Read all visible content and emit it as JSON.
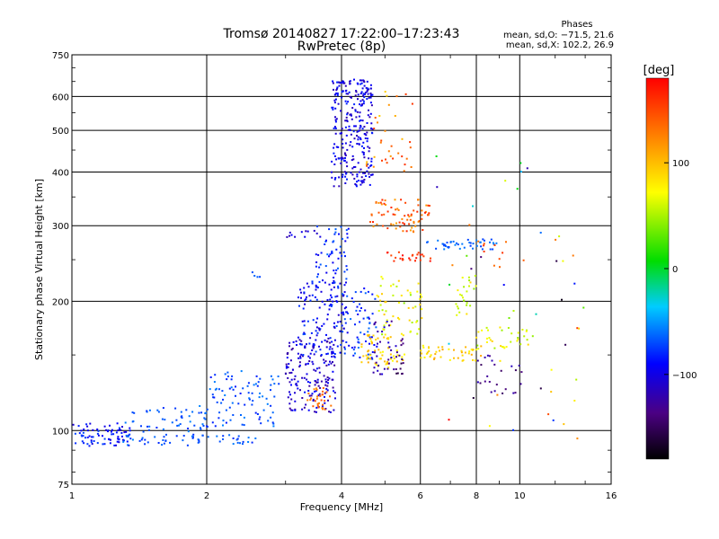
{
  "chart_data": {
    "type": "scatter",
    "title": "Tromsø 20140827 17:22:00–17:23:43",
    "subtitle": "RwPretec (8p)",
    "xlabel": "Frequency [MHz]",
    "ylabel": "Stationary phase Virtual Height [km]",
    "x_scale": "log",
    "y_scale": "log",
    "xlim": [
      1,
      16
    ],
    "ylim": [
      75,
      750
    ],
    "x_ticks": [
      1,
      2,
      4,
      6,
      8,
      10,
      16
    ],
    "x_tick_labels": [
      "1",
      "2",
      "4",
      "6",
      "8",
      "10",
      "16"
    ],
    "y_ticks": [
      75,
      100,
      200,
      300,
      400,
      500,
      600,
      750
    ],
    "y_tick_labels": [
      "75",
      "100",
      "200",
      "300",
      "400",
      "500",
      "600",
      "750"
    ],
    "grid": true,
    "stats": {
      "heading": "Phases",
      "line_o": "mean, sd,O: −71.5, 21.6",
      "line_x": "mean, sd,X: 102.2, 26.9"
    },
    "colorbar": {
      "label": "[deg]",
      "range": [
        -180,
        180
      ],
      "tick_values": [
        100,
        0,
        -100
      ],
      "tick_labels": [
        "100",
        "0",
        "−100"
      ]
    },
    "clusters": [
      {
        "f": [
          0.98,
          1.35
        ],
        "h": [
          92,
          104
        ],
        "c": [
          -110,
          -70
        ],
        "n": 80
      },
      {
        "f": [
          1.3,
          2.0
        ],
        "h": [
          92,
          115
        ],
        "c": [
          -80,
          -55
        ],
        "n": 70
      },
      {
        "f": [
          1.6,
          2.6
        ],
        "h": [
          93,
          98
        ],
        "c": [
          -80,
          -55
        ],
        "n": 35
      },
      {
        "f": [
          2.0,
          2.9
        ],
        "h": [
          102,
          138
        ],
        "c": [
          -85,
          -55
        ],
        "n": 90
      },
      {
        "f": [
          2.5,
          2.65
        ],
        "h": [
          225,
          240
        ],
        "c": [
          -75,
          -60
        ],
        "n": 4
      },
      {
        "f": [
          3.0,
          3.9
        ],
        "h": [
          110,
          165
        ],
        "c": [
          -130,
          -85
        ],
        "n": 170
      },
      {
        "f": [
          3.2,
          4.1
        ],
        "h": [
          150,
          225
        ],
        "c": [
          -110,
          -70
        ],
        "n": 130
      },
      {
        "f": [
          3.5,
          4.2
        ],
        "h": [
          220,
          300
        ],
        "c": [
          -100,
          -60
        ],
        "n": 55
      },
      {
        "f": [
          3.0,
          3.6
        ],
        "h": [
          280,
          292
        ],
        "c": [
          -120,
          -90
        ],
        "n": 12
      },
      {
        "f": [
          3.8,
          4.7
        ],
        "h": [
          370,
          660
        ],
        "c": [
          -120,
          -80
        ],
        "n": 280
      },
      {
        "f": [
          3.35,
          3.8
        ],
        "h": [
          112,
          126
        ],
        "c": [
          120,
          150
        ],
        "n": 30
      },
      {
        "f": [
          4.0,
          4.8
        ],
        "h": [
          145,
          215
        ],
        "c": [
          -100,
          -60
        ],
        "n": 70
      },
      {
        "f": [
          4.4,
          5.6
        ],
        "h": [
          140,
          168
        ],
        "c": [
          70,
          110
        ],
        "n": 60
      },
      {
        "f": [
          4.8,
          6.1
        ],
        "h": [
          165,
          230
        ],
        "c": [
          40,
          95
        ],
        "n": 55
      },
      {
        "f": [
          4.6,
          6.3
        ],
        "h": [
          290,
          345
        ],
        "c": [
          110,
          170
        ],
        "n": 75
      },
      {
        "f": [
          4.5,
          5.8
        ],
        "h": [
          400,
          620
        ],
        "c": [
          90,
          160
        ],
        "n": 35
      },
      {
        "f": [
          5.0,
          6.4
        ],
        "h": [
          246,
          262
        ],
        "c": [
          150,
          180
        ],
        "n": 25
      },
      {
        "f": [
          4.7,
          5.3
        ],
        "h": [
          135,
          180
        ],
        "c": [
          -140,
          -100
        ],
        "n": 30
      },
      {
        "f": [
          5.3,
          5.5
        ],
        "h": [
          135,
          165
        ],
        "c": [
          -160,
          -130
        ],
        "n": 15
      },
      {
        "f": [
          6.2,
          8.9
        ],
        "h": [
          264,
          280
        ],
        "c": [
          -75,
          -55
        ],
        "n": 45
      },
      {
        "f": [
          6.0,
          8.2
        ],
        "h": [
          145,
          158
        ],
        "c": [
          70,
          110
        ],
        "n": 45
      },
      {
        "f": [
          7.2,
          8.0
        ],
        "h": [
          185,
          230
        ],
        "c": [
          40,
          90
        ],
        "n": 25
      },
      {
        "f": [
          8.0,
          10.8
        ],
        "h": [
          155,
          175
        ],
        "c": [
          40,
          95
        ],
        "n": 35
      },
      {
        "f": [
          8.0,
          10.2
        ],
        "h": [
          120,
          150
        ],
        "c": [
          -150,
          -110
        ],
        "n": 25
      },
      {
        "f": [
          7.0,
          10.4
        ],
        "h": [
          240,
          280
        ],
        "c": [
          120,
          160
        ],
        "n": 12
      },
      {
        "f": [
          6.5,
          14.0
        ],
        "h": [
          95,
          470
        ],
        "c": [
          -180,
          180
        ],
        "n": 45
      }
    ]
  }
}
